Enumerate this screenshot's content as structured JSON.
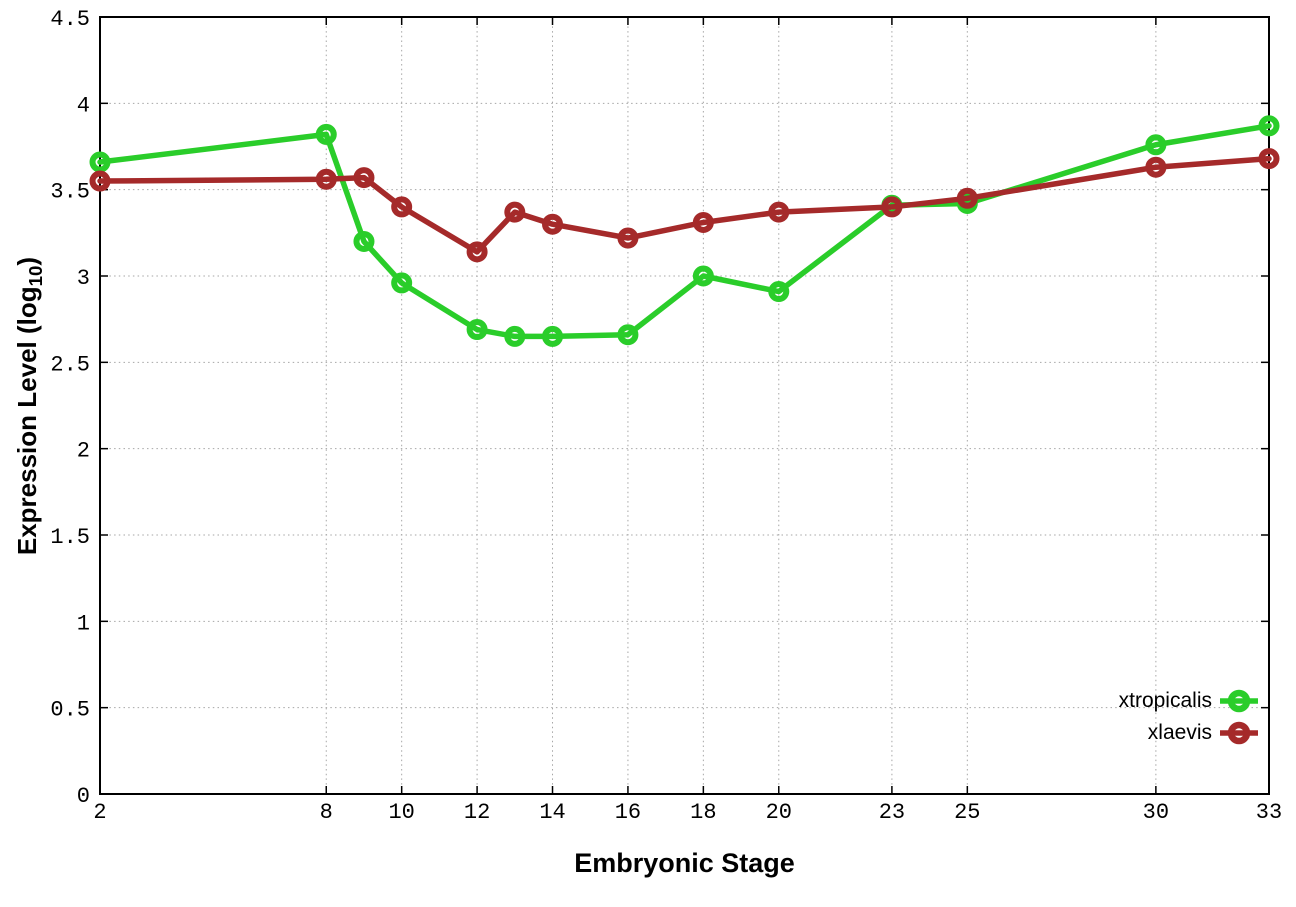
{
  "figure": {
    "background": "#ffffff",
    "border_color": "#000000",
    "grid_color": "#a6a6a6",
    "text_color": "#000000"
  },
  "chart_data": {
    "type": "line",
    "title": "",
    "xlabel": "Embryonic Stage",
    "ylabel": "Expression Level (log10)",
    "ylabel_parts": {
      "main": "Expression Level (log",
      "sub": "10",
      "end": ")"
    },
    "xlim": [
      2,
      33
    ],
    "ylim": [
      0,
      4.5
    ],
    "x_ticks": [
      2,
      8,
      10,
      12,
      14,
      16,
      18,
      20,
      23,
      25,
      30,
      33
    ],
    "y_ticks": [
      0,
      0.5,
      1,
      1.5,
      2,
      2.5,
      3,
      3.5,
      4,
      4.5
    ],
    "y_tick_labels": [
      "0",
      "0.5",
      "1",
      "1.5",
      "2",
      "2.5",
      "3",
      "3.5",
      "4",
      "4.5"
    ],
    "grid": true,
    "grid_style": "dotted",
    "legend_position": "bottom-right",
    "marker": "open-circle",
    "x": [
      2,
      8,
      9,
      10,
      12,
      13,
      14,
      16,
      18,
      20,
      23,
      25,
      30,
      33
    ],
    "series": [
      {
        "name": "xtropicalis",
        "color": "#2ACD2A",
        "values": [
          3.66,
          3.82,
          3.2,
          2.96,
          2.69,
          2.65,
          2.65,
          2.66,
          3.0,
          2.91,
          3.41,
          3.42,
          3.76,
          3.87
        ]
      },
      {
        "name": "xlaevis",
        "color": "#A52A2A",
        "values": [
          3.55,
          3.56,
          3.57,
          3.4,
          3.14,
          3.37,
          3.3,
          3.22,
          3.31,
          3.37,
          3.4,
          3.45,
          3.63,
          3.68
        ]
      }
    ]
  }
}
